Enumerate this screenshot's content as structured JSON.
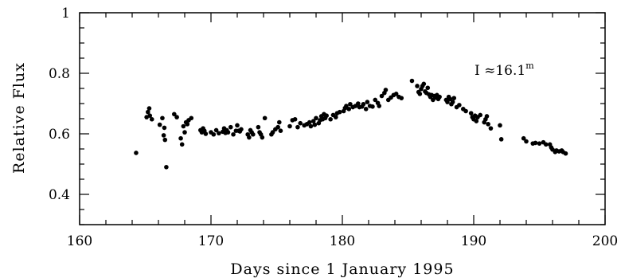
{
  "chart_data": {
    "type": "scatter",
    "title": "",
    "xlabel": "Days since 1 January 1995",
    "ylabel": "Relative Flux",
    "xlim": [
      160,
      200
    ],
    "ylim": [
      0.3,
      1.0
    ],
    "x_ticks": [
      "160",
      "170",
      "180",
      "190",
      "200"
    ],
    "y_ticks": [
      "0.4",
      "0.6",
      "0.8",
      "1"
    ],
    "grid": false,
    "annotation": {
      "text": "I ≈16.1",
      "superscript": "m"
    },
    "points": [
      [
        164.3,
        0.537
      ],
      [
        165.1,
        0.655
      ],
      [
        165.2,
        0.672
      ],
      [
        165.3,
        0.684
      ],
      [
        165.35,
        0.66
      ],
      [
        165.5,
        0.648
      ],
      [
        166.1,
        0.63
      ],
      [
        166.3,
        0.652
      ],
      [
        166.4,
        0.595
      ],
      [
        166.45,
        0.62
      ],
      [
        166.5,
        0.58
      ],
      [
        166.6,
        0.49
      ],
      [
        167.2,
        0.665
      ],
      [
        167.4,
        0.655
      ],
      [
        167.7,
        0.585
      ],
      [
        167.8,
        0.565
      ],
      [
        167.9,
        0.625
      ],
      [
        168.0,
        0.605
      ],
      [
        168.1,
        0.638
      ],
      [
        168.2,
        0.632
      ],
      [
        168.3,
        0.645
      ],
      [
        168.5,
        0.652
      ],
      [
        169.2,
        0.612
      ],
      [
        169.3,
        0.605
      ],
      [
        169.4,
        0.618
      ],
      [
        169.5,
        0.61
      ],
      [
        169.6,
        0.6
      ],
      [
        170.0,
        0.605
      ],
      [
        170.2,
        0.598
      ],
      [
        170.4,
        0.612
      ],
      [
        170.6,
        0.602
      ],
      [
        170.9,
        0.607
      ],
      [
        171.0,
        0.618
      ],
      [
        171.1,
        0.603
      ],
      [
        171.2,
        0.612
      ],
      [
        171.3,
        0.605
      ],
      [
        171.5,
        0.622
      ],
      [
        171.7,
        0.598
      ],
      [
        171.9,
        0.61
      ],
      [
        172.0,
        0.628
      ],
      [
        172.1,
        0.61
      ],
      [
        172.2,
        0.608
      ],
      [
        172.3,
        0.615
      ],
      [
        172.8,
        0.598
      ],
      [
        172.9,
        0.588
      ],
      [
        173.0,
        0.612
      ],
      [
        173.1,
        0.605
      ],
      [
        173.2,
        0.598
      ],
      [
        173.6,
        0.622
      ],
      [
        173.7,
        0.605
      ],
      [
        173.8,
        0.598
      ],
      [
        173.9,
        0.588
      ],
      [
        174.1,
        0.652
      ],
      [
        174.6,
        0.598
      ],
      [
        174.7,
        0.605
      ],
      [
        174.9,
        0.615
      ],
      [
        175.1,
        0.622
      ],
      [
        175.2,
        0.638
      ],
      [
        175.3,
        0.61
      ],
      [
        176.0,
        0.625
      ],
      [
        176.2,
        0.645
      ],
      [
        176.4,
        0.648
      ],
      [
        176.6,
        0.622
      ],
      [
        176.8,
        0.635
      ],
      [
        177.1,
        0.628
      ],
      [
        177.3,
        0.632
      ],
      [
        177.5,
        0.638
      ],
      [
        177.6,
        0.625
      ],
      [
        177.8,
        0.642
      ],
      [
        177.9,
        0.63
      ],
      [
        178.0,
        0.652
      ],
      [
        178.2,
        0.635
      ],
      [
        178.3,
        0.645
      ],
      [
        178.4,
        0.658
      ],
      [
        178.5,
        0.648
      ],
      [
        178.6,
        0.665
      ],
      [
        178.7,
        0.652
      ],
      [
        178.8,
        0.66
      ],
      [
        179.1,
        0.648
      ],
      [
        179.3,
        0.662
      ],
      [
        179.5,
        0.655
      ],
      [
        179.6,
        0.668
      ],
      [
        179.8,
        0.672
      ],
      [
        180.1,
        0.675
      ],
      [
        180.2,
        0.685
      ],
      [
        180.3,
        0.692
      ],
      [
        180.5,
        0.682
      ],
      [
        180.6,
        0.698
      ],
      [
        180.8,
        0.688
      ],
      [
        181.0,
        0.692
      ],
      [
        181.2,
        0.7
      ],
      [
        181.3,
        0.688
      ],
      [
        181.5,
        0.69
      ],
      [
        181.6,
        0.698
      ],
      [
        181.8,
        0.682
      ],
      [
        181.9,
        0.705
      ],
      [
        182.1,
        0.692
      ],
      [
        182.3,
        0.69
      ],
      [
        182.5,
        0.712
      ],
      [
        182.7,
        0.702
      ],
      [
        182.8,
        0.692
      ],
      [
        183.0,
        0.725
      ],
      [
        183.2,
        0.735
      ],
      [
        183.3,
        0.745
      ],
      [
        183.5,
        0.712
      ],
      [
        183.7,
        0.72
      ],
      [
        183.9,
        0.728
      ],
      [
        184.1,
        0.732
      ],
      [
        184.3,
        0.722
      ],
      [
        184.5,
        0.718
      ],
      [
        185.3,
        0.775
      ],
      [
        185.7,
        0.758
      ],
      [
        185.8,
        0.738
      ],
      [
        185.9,
        0.732
      ],
      [
        186.0,
        0.748
      ],
      [
        186.1,
        0.758
      ],
      [
        186.2,
        0.765
      ],
      [
        186.3,
        0.74
      ],
      [
        186.4,
        0.735
      ],
      [
        186.5,
        0.752
      ],
      [
        186.6,
        0.73
      ],
      [
        186.7,
        0.722
      ],
      [
        186.8,
        0.728
      ],
      [
        186.9,
        0.712
      ],
      [
        187.0,
        0.725
      ],
      [
        187.1,
        0.72
      ],
      [
        187.2,
        0.728
      ],
      [
        187.3,
        0.715
      ],
      [
        187.4,
        0.722
      ],
      [
        187.9,
        0.712
      ],
      [
        188.0,
        0.705
      ],
      [
        188.1,
        0.722
      ],
      [
        188.2,
        0.715
      ],
      [
        188.3,
        0.698
      ],
      [
        188.4,
        0.705
      ],
      [
        188.5,
        0.718
      ],
      [
        188.7,
        0.688
      ],
      [
        188.9,
        0.695
      ],
      [
        189.2,
        0.682
      ],
      [
        189.4,
        0.675
      ],
      [
        189.8,
        0.668
      ],
      [
        189.9,
        0.655
      ],
      [
        190.0,
        0.648
      ],
      [
        190.1,
        0.66
      ],
      [
        190.2,
        0.642
      ],
      [
        190.3,
        0.655
      ],
      [
        190.5,
        0.662
      ],
      [
        190.8,
        0.638
      ],
      [
        190.9,
        0.648
      ],
      [
        191.0,
        0.658
      ],
      [
        191.1,
        0.632
      ],
      [
        191.3,
        0.618
      ],
      [
        192.0,
        0.628
      ],
      [
        192.1,
        0.582
      ],
      [
        193.8,
        0.585
      ],
      [
        194.0,
        0.575
      ],
      [
        194.5,
        0.568
      ],
      [
        194.7,
        0.57
      ],
      [
        195.0,
        0.568
      ],
      [
        195.3,
        0.572
      ],
      [
        195.5,
        0.565
      ],
      [
        195.8,
        0.565
      ],
      [
        195.9,
        0.555
      ],
      [
        196.0,
        0.548
      ],
      [
        196.2,
        0.54
      ],
      [
        196.3,
        0.545
      ],
      [
        196.5,
        0.542
      ],
      [
        196.7,
        0.545
      ],
      [
        196.8,
        0.54
      ],
      [
        197.0,
        0.535
      ]
    ]
  }
}
